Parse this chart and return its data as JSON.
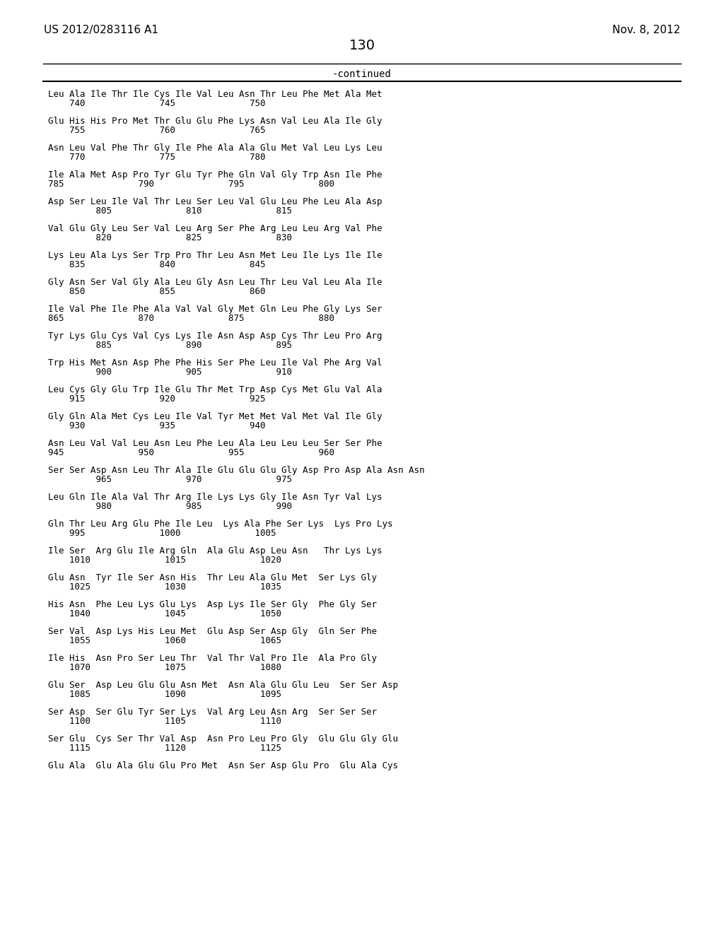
{
  "header_left": "US 2012/0283116 A1",
  "header_right": "Nov. 8, 2012",
  "page_number": "130",
  "continued_label": "-continued",
  "background_color": "#ffffff",
  "text_color": "#000000",
  "sequence_blocks": [
    {
      "line1": "Leu Ala Ile Thr Ile Cys Ile Val Leu Asn Thr Leu Phe Met Ala Met",
      "line2": "    740              745              750"
    },
    {
      "line1": "Glu His His Pro Met Thr Glu Glu Phe Lys Asn Val Leu Ala Ile Gly",
      "line2": "    755              760              765"
    },
    {
      "line1": "Asn Leu Val Phe Thr Gly Ile Phe Ala Ala Glu Met Val Leu Lys Leu",
      "line2": "    770              775              780"
    },
    {
      "line1": "Ile Ala Met Asp Pro Tyr Glu Tyr Phe Gln Val Gly Trp Asn Ile Phe",
      "line2": "785              790              795              800"
    },
    {
      "line1": "Asp Ser Leu Ile Val Thr Leu Ser Leu Val Glu Leu Phe Leu Ala Asp",
      "line2": "         805              810              815"
    },
    {
      "line1": "Val Glu Gly Leu Ser Val Leu Arg Ser Phe Arg Leu Leu Arg Val Phe",
      "line2": "         820              825              830"
    },
    {
      "line1": "Lys Leu Ala Lys Ser Trp Pro Thr Leu Asn Met Leu Ile Lys Ile Ile",
      "line2": "    835              840              845"
    },
    {
      "line1": "Gly Asn Ser Val Gly Ala Leu Gly Asn Leu Thr Leu Val Leu Ala Ile",
      "line2": "    850              855              860"
    },
    {
      "line1": "Ile Val Phe Ile Phe Ala Val Val Gly Met Gln Leu Phe Gly Lys Ser",
      "line2": "865              870              875              880"
    },
    {
      "line1": "Tyr Lys Glu Cys Val Cys Lys Ile Asn Asp Asp Cys Thr Leu Pro Arg",
      "line2": "         885              890              895"
    },
    {
      "line1": "Trp His Met Asn Asp Phe Phe His Ser Phe Leu Ile Val Phe Arg Val",
      "line2": "         900              905              910"
    },
    {
      "line1": "Leu Cys Gly Glu Trp Ile Glu Thr Met Trp Asp Cys Met Glu Val Ala",
      "line2": "    915              920              925"
    },
    {
      "line1": "Gly Gln Ala Met Cys Leu Ile Val Tyr Met Met Val Met Val Ile Gly",
      "line2": "    930              935              940"
    },
    {
      "line1": "Asn Leu Val Val Leu Asn Leu Phe Leu Ala Leu Leu Leu Ser Ser Phe",
      "line2": "945              950              955              960"
    },
    {
      "line1": "Ser Ser Asp Asn Leu Thr Ala Ile Glu Glu Glu Gly Asp Pro Asp Ala Asn Asn",
      "line2": "         965              970              975"
    },
    {
      "line1": "Leu Gln Ile Ala Val Thr Arg Ile Lys Lys Gly Ile Asn Tyr Val Lys",
      "line2": "         980              985              990"
    },
    {
      "line1": "Gln Thr Leu Arg Glu Phe Ile Leu  Lys Ala Phe Ser Lys  Lys Pro Lys",
      "line2": "    995              1000              1005"
    },
    {
      "line1": "Ile Ser  Arg Glu Ile Arg Gln  Ala Glu Asp Leu Asn   Thr Lys Lys",
      "line2": "    1010              1015              1020"
    },
    {
      "line1": "Glu Asn  Tyr Ile Ser Asn His  Thr Leu Ala Glu Met  Ser Lys Gly",
      "line2": "    1025              1030              1035"
    },
    {
      "line1": "His Asn  Phe Leu Lys Glu Lys  Asp Lys Ile Ser Gly  Phe Gly Ser",
      "line2": "    1040              1045              1050"
    },
    {
      "line1": "Ser Val  Asp Lys His Leu Met  Glu Asp Ser Asp Gly  Gln Ser Phe",
      "line2": "    1055              1060              1065"
    },
    {
      "line1": "Ile His  Asn Pro Ser Leu Thr  Val Thr Val Pro Ile  Ala Pro Gly",
      "line2": "    1070              1075              1080"
    },
    {
      "line1": "Glu Ser  Asp Leu Glu Glu Asn Met  Asn Ala Glu Glu Leu  Ser Ser Asp",
      "line2": "    1085              1090              1095"
    },
    {
      "line1": "Ser Asp  Ser Glu Tyr Ser Lys  Val Arg Leu Asn Arg  Ser Ser Ser",
      "line2": "    1100              1105              1110"
    },
    {
      "line1": "Ser Glu  Cys Ser Thr Val Asp  Asn Pro Leu Pro Gly  Glu Glu Gly Glu",
      "line2": "    1115              1120              1125"
    },
    {
      "line1": "Glu Ala  Glu Ala Glu Glu Pro Met  Asn Ser Asp Glu Pro  Glu Ala Cys",
      "line2": ""
    }
  ]
}
